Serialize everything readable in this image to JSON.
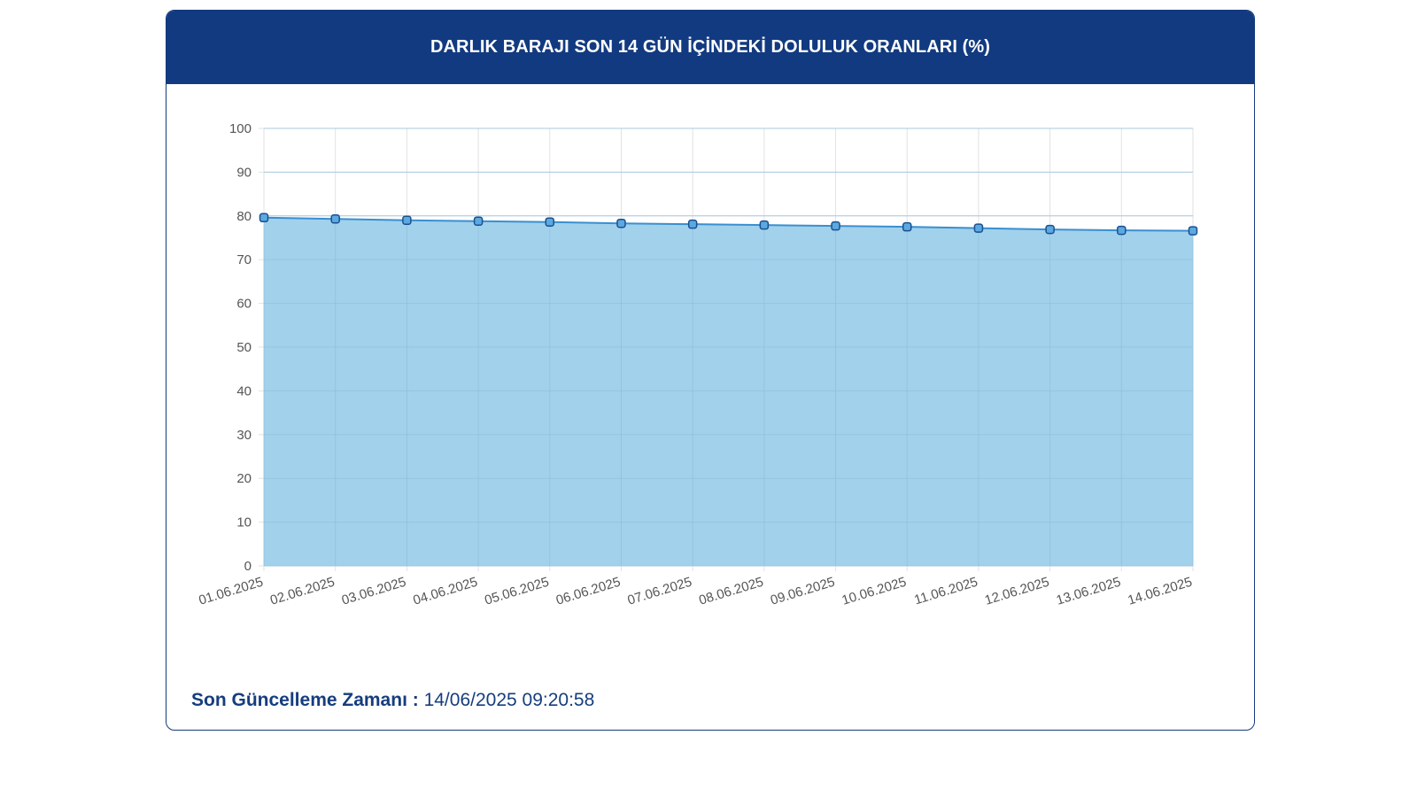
{
  "card": {
    "title": "DARLIK BARAJI SON 14 GÜN İÇİNDEKİ DOLULUK ORANLARI (%)"
  },
  "footer": {
    "label": "Son Güncelleme Zamanı :",
    "value": "14/06/2025 09:20:58"
  },
  "colors": {
    "header_bg": "#123a80",
    "area_fill": "#9dcfeb",
    "line": "#3a8fd0",
    "marker_stroke": "#1c4f8f",
    "grid": "#e2e2e2"
  },
  "chart_data": {
    "type": "area",
    "title": "DARLIK BARAJI SON 14 GÜN İÇİNDEKİ DOLULUK ORANLARI (%)",
    "xlabel": "",
    "ylabel": "",
    "ylim": [
      0,
      100
    ],
    "yticks": [
      0,
      10,
      20,
      30,
      40,
      50,
      60,
      70,
      80,
      90,
      100
    ],
    "grid": true,
    "legend": "none",
    "x": [
      "01.06.2025",
      "02.06.2025",
      "03.06.2025",
      "04.06.2025",
      "05.06.2025",
      "06.06.2025",
      "07.06.2025",
      "08.06.2025",
      "09.06.2025",
      "10.06.2025",
      "11.06.2025",
      "12.06.2025",
      "13.06.2025",
      "14.06.2025"
    ],
    "series": [
      {
        "values": [
          79.6,
          79.3,
          79.0,
          78.8,
          78.6,
          78.3,
          78.1,
          77.9,
          77.7,
          77.5,
          77.2,
          76.9,
          76.7,
          76.6
        ]
      }
    ]
  }
}
